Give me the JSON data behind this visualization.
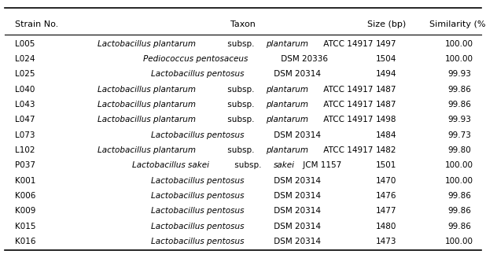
{
  "columns": [
    "Strain No.",
    "Taxon",
    "Size (bp)",
    "Similarity (%)"
  ],
  "rows": [
    {
      "strain": "L005",
      "segments": [
        [
          "Lactobacillus plantarum",
          true
        ],
        [
          " subsp. ",
          false
        ],
        [
          "plantarum",
          true
        ],
        [
          " ATCC 14917",
          false
        ]
      ],
      "size": "1497",
      "similarity": "100.00"
    },
    {
      "strain": "L024",
      "segments": [
        [
          "Pediococcus pentosaceus",
          true
        ],
        [
          " DSM 20336",
          false
        ]
      ],
      "size": "1504",
      "similarity": "100.00"
    },
    {
      "strain": "L025",
      "segments": [
        [
          "Lactobacillus pentosus",
          true
        ],
        [
          " DSM 20314",
          false
        ]
      ],
      "size": "1494",
      "similarity": "99.93"
    },
    {
      "strain": "L040",
      "segments": [
        [
          "Lactobacillus plantarum",
          true
        ],
        [
          " subsp. ",
          false
        ],
        [
          "plantarum",
          true
        ],
        [
          " ATCC 14917",
          false
        ]
      ],
      "size": "1487",
      "similarity": "99.86"
    },
    {
      "strain": "L043",
      "segments": [
        [
          "Lactobacillus plantarum",
          true
        ],
        [
          " subsp. ",
          false
        ],
        [
          "plantarum",
          true
        ],
        [
          " ATCC 14917",
          false
        ]
      ],
      "size": "1487",
      "similarity": "99.86"
    },
    {
      "strain": "L047",
      "segments": [
        [
          "Lactobacillus plantarum",
          true
        ],
        [
          " subsp. ",
          false
        ],
        [
          "plantarum",
          true
        ],
        [
          " ATCC 14917",
          false
        ]
      ],
      "size": "1498",
      "similarity": "99.93"
    },
    {
      "strain": "L073",
      "segments": [
        [
          "Lactobacillus pentosus",
          true
        ],
        [
          " DSM 20314",
          false
        ]
      ],
      "size": "1484",
      "similarity": "99.73"
    },
    {
      "strain": "L102",
      "segments": [
        [
          "Lactobacillus plantarum",
          true
        ],
        [
          " subsp. ",
          false
        ],
        [
          "plantarum",
          true
        ],
        [
          " ATCC 14917",
          false
        ]
      ],
      "size": "1482",
      "similarity": "99.80"
    },
    {
      "strain": "P037",
      "segments": [
        [
          "Lactobacillus sakei",
          true
        ],
        [
          " subsp. ",
          false
        ],
        [
          "sakei",
          true
        ],
        [
          " JCM 1157",
          false
        ]
      ],
      "size": "1501",
      "similarity": "100.00"
    },
    {
      "strain": "K001",
      "segments": [
        [
          "Lactobacillus pentosus",
          true
        ],
        [
          " DSM 20314",
          false
        ]
      ],
      "size": "1470",
      "similarity": "100.00"
    },
    {
      "strain": "K006",
      "segments": [
        [
          "Lactobacillus pentosus",
          true
        ],
        [
          " DSM 20314",
          false
        ]
      ],
      "size": "1476",
      "similarity": "99.86"
    },
    {
      "strain": "K009",
      "segments": [
        [
          "Lactobacillus pentosus",
          true
        ],
        [
          " DSM 20314",
          false
        ]
      ],
      "size": "1477",
      "similarity": "99.86"
    },
    {
      "strain": "K015",
      "segments": [
        [
          "Lactobacillus pentosus",
          true
        ],
        [
          " DSM 20314",
          false
        ]
      ],
      "size": "1480",
      "similarity": "99.86"
    },
    {
      "strain": "K016",
      "segments": [
        [
          "Lactobacillus pentosus",
          true
        ],
        [
          " DSM 20314",
          false
        ]
      ],
      "size": "1473",
      "similarity": "100.00"
    }
  ],
  "header_fontsize": 8.0,
  "row_fontsize": 7.5,
  "background_color": "#ffffff",
  "text_color": "#000000",
  "line_color": "#000000",
  "fig_width": 6.18,
  "fig_height": 3.28,
  "dpi": 100
}
